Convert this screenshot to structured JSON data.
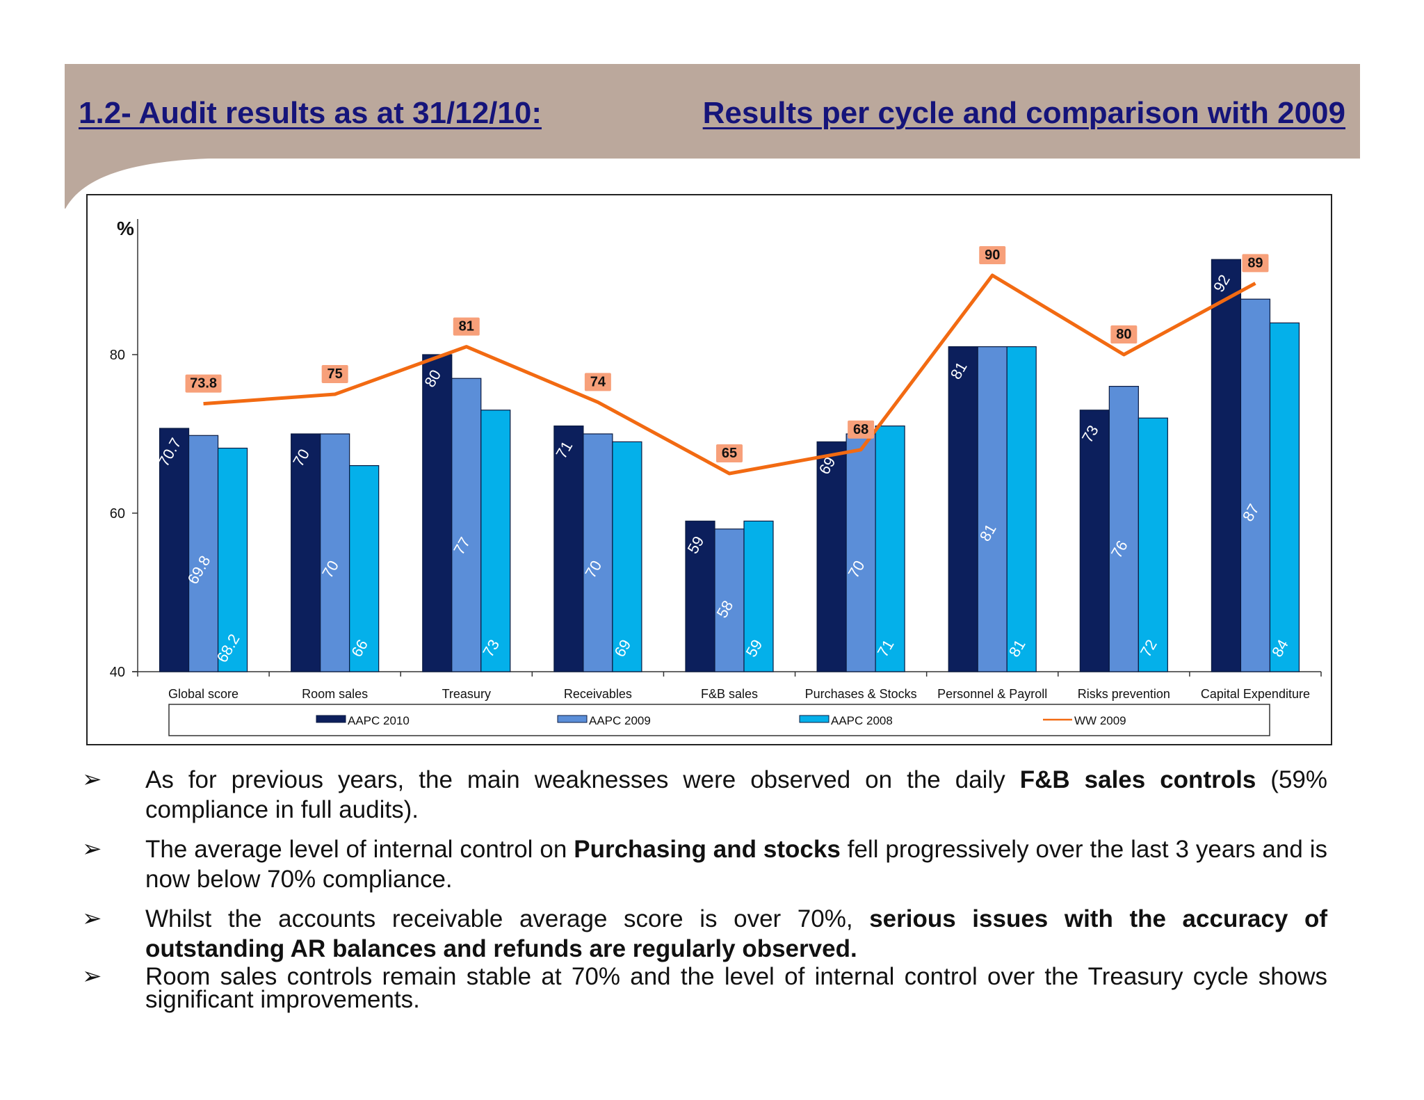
{
  "header": {
    "title_left": "1.2- Audit results as at 31/12/10:",
    "title_right": "Results per cycle and comparison with 2009",
    "band_color": "#bba89c"
  },
  "chart_data": {
    "type": "bar",
    "ylabel": "%",
    "ylim": [
      40,
      100
    ],
    "yticks": [
      40,
      60,
      80
    ],
    "categories": [
      "Global score",
      "Room sales",
      "Treasury",
      "Receivables",
      "F&B sales",
      "Purchases & Stocks",
      "Personnel & Payroll",
      "Risks prevention",
      "Capital Expenditure"
    ],
    "series": [
      {
        "name": "AAPC 2010",
        "color": "#0c1f5c",
        "values": [
          70.7,
          70,
          80,
          71,
          59,
          69,
          81,
          73,
          92
        ],
        "labels": [
          "70.7",
          "70",
          "80",
          "71",
          "59",
          "69",
          "81",
          "73",
          "92"
        ]
      },
      {
        "name": "AAPC 2009",
        "color": "#5b8ed8",
        "values": [
          69.8,
          70,
          77,
          70,
          58,
          70,
          81,
          76,
          87
        ],
        "labels": [
          "69.8",
          "70",
          "77",
          "70",
          "58",
          "70",
          "81",
          "76",
          "87"
        ]
      },
      {
        "name": "AAPC 2008",
        "color": "#04b0ea",
        "values": [
          68.2,
          66,
          73,
          69,
          59,
          71,
          81,
          72,
          84
        ],
        "labels": [
          "68.2",
          "66",
          "73",
          "69",
          "59",
          "71",
          "81",
          "72",
          "84"
        ]
      }
    ],
    "line": {
      "name": "WW 2009",
      "color": "#f26a12",
      "values": [
        73.8,
        75,
        81,
        74,
        65,
        68,
        90,
        80,
        89
      ],
      "labels": [
        "73.8",
        "75",
        "81",
        "74",
        "65",
        "68",
        "90",
        "80",
        "89"
      ]
    },
    "legend": [
      "AAPC 2010",
      "AAPC 2009",
      "AAPC 2008",
      "WW 2009"
    ],
    "legend_position": "bottom"
  },
  "bullets": [
    {
      "parts": [
        {
          "t": "As for previous years, the main weaknesses were observed on the daily "
        },
        {
          "t": "F&B sales controls",
          "b": true
        },
        {
          "t": " (59% compliance in full audits)."
        }
      ]
    },
    {
      "parts": [
        {
          "t": "The average level of internal control on "
        },
        {
          "t": "Purchasing and stocks",
          "b": true
        },
        {
          "t": " fell progressively over the last 3 years and is now below 70% compliance."
        }
      ]
    },
    {
      "parts": [
        {
          "t": "Whilst the accounts receivable average score is over 70%, "
        },
        {
          "t": "serious issues with the accuracy of outstanding AR balances and refunds are regularly observed.",
          "b": true
        }
      ]
    },
    {
      "parts": [
        {
          "t": "Room sales controls remain stable at 70% and the level of internal control over the Treasury cycle shows significant improvements."
        }
      ]
    }
  ],
  "bullet_symbol": "➢"
}
